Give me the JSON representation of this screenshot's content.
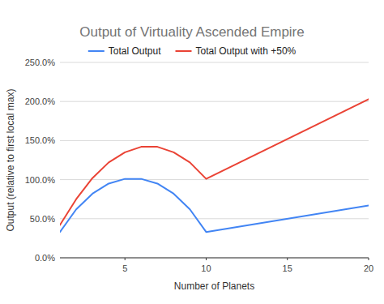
{
  "chart_data": {
    "type": "line",
    "title": "Output of Virtuality Ascended Empire",
    "x_label": "Number of Planets",
    "y_label": "Output (relative to first local max)",
    "x": [
      1,
      2,
      3,
      4,
      5,
      6,
      7,
      8,
      9,
      10,
      20
    ],
    "series": [
      {
        "name": "Total Output",
        "color": "#4285f4",
        "values": [
          33,
          62,
          82,
          95,
          101,
          101,
          95,
          82,
          62,
          33,
          67
        ]
      },
      {
        "name": "Total Output with +50%",
        "color": "#ea4335",
        "values": [
          42,
          75,
          102,
          122,
          135,
          142,
          142,
          135,
          122,
          101,
          203
        ]
      }
    ],
    "xlim": [
      1,
      20
    ],
    "xticks": [
      5,
      10,
      15,
      20
    ],
    "ylim": [
      0,
      250
    ],
    "yticks": [
      {
        "value": 0,
        "label": "0.0%"
      },
      {
        "value": 50,
        "label": "50.0%"
      },
      {
        "value": 100,
        "label": "100.0%"
      },
      {
        "value": 150,
        "label": "150.0%"
      },
      {
        "value": 200,
        "label": "200.0%"
      },
      {
        "value": 250,
        "label": "250.0%"
      }
    ],
    "grid": true,
    "legend": "top"
  }
}
